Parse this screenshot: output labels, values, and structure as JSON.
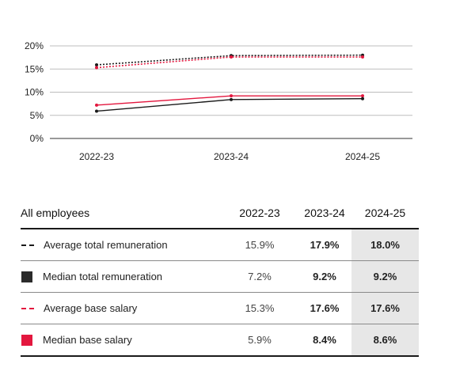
{
  "chart_data": {
    "type": "line",
    "categories": [
      "2022-23",
      "2023-24",
      "2024-25"
    ],
    "yticks": [
      "0%",
      "5%",
      "10%",
      "15%",
      "20%"
    ],
    "ylim": [
      0,
      20
    ],
    "series": [
      {
        "name": "Average total remuneration",
        "values": [
          15.9,
          17.9,
          18.0
        ],
        "color": "#1a1a1a",
        "style": "dotted"
      },
      {
        "name": "Median total remuneration",
        "values": [
          7.2,
          9.2,
          9.2
        ],
        "color": "#e3173e",
        "style": "solid"
      },
      {
        "name": "Average base salary",
        "values": [
          15.3,
          17.6,
          17.6
        ],
        "color": "#e3173e",
        "style": "dotted"
      },
      {
        "name": "Median base salary",
        "values": [
          5.9,
          8.4,
          8.6
        ],
        "color": "#1a1a1a",
        "style": "solid"
      }
    ],
    "grid": true
  },
  "table": {
    "header": {
      "label": "All employees",
      "y1": "2022-23",
      "y2": "2023-24",
      "y3": "2024-25"
    },
    "rows": [
      {
        "label": "Average total remuneration",
        "y1": "15.9%",
        "y2": "17.9%",
        "y3": "18.0%",
        "symbol": "dash",
        "color": "#1a1a1a"
      },
      {
        "label": "Median total remuneration",
        "y1": "7.2%",
        "y2": "9.2%",
        "y3": "9.2%",
        "symbol": "square",
        "color": "#2b2b2b"
      },
      {
        "label": "Average base salary",
        "y1": "15.3%",
        "y2": "17.6%",
        "y3": "17.6%",
        "symbol": "dash",
        "color": "#e3173e"
      },
      {
        "label": "Median base salary",
        "y1": "5.9%",
        "y2": "8.4%",
        "y3": "8.6%",
        "symbol": "square",
        "color": "#e3173e"
      }
    ]
  }
}
